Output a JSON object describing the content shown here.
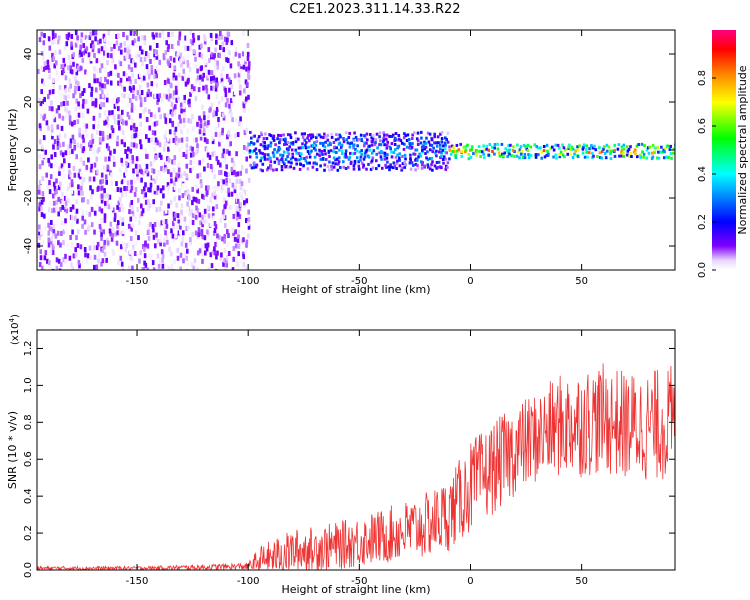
{
  "figure_title": "C2E1.2023.311.14.33.R22",
  "chart_data": [
    {
      "type": "heatmap",
      "title": "",
      "xlabel": "Height of straight line (km)",
      "ylabel": "Frequency (Hz)",
      "xlim": [
        -195,
        92
      ],
      "ylim": [
        -50,
        50
      ],
      "x_ticks": [
        -150,
        -100,
        -50,
        0,
        50
      ],
      "y_ticks": [
        -40,
        -20,
        0,
        20,
        40
      ],
      "colorbar": {
        "label": "Normalized spectral amplitude",
        "range": [
          0,
          1
        ],
        "ticks": [
          "0.0",
          "0.2",
          "0.4",
          "0.6",
          "0.8"
        ],
        "colors": [
          "#ffffff",
          "#7a00ff",
          "#0000ff",
          "#00ffff",
          "#00ff00",
          "#ffff00",
          "#ff8000",
          "#ff0000",
          "#ff0080"
        ]
      },
      "regions": [
        {
          "x_range": [
            -195,
            -100
          ],
          "freq_range": [
            -50,
            50
          ],
          "amplitude": [
            0.0,
            0.15
          ]
        },
        {
          "x_range": [
            -100,
            -10
          ],
          "freq_range": [
            -8,
            8
          ],
          "amplitude": [
            0.1,
            0.45
          ]
        },
        {
          "x_range": [
            -10,
            92
          ],
          "freq_range": [
            -3,
            3
          ],
          "amplitude": [
            0.2,
            0.95
          ]
        }
      ]
    },
    {
      "type": "line",
      "title": "",
      "xlabel": "Height of straight line (km)",
      "ylabel": "SNR (10 * v/v)",
      "y_scale_label": "(x10",
      "y_scale_exp": "4",
      "y_scale_close": ")",
      "xlim": [
        -195,
        92
      ],
      "ylim": [
        0,
        1.3
      ],
      "x_ticks": [
        -150,
        -100,
        -50,
        0,
        50
      ],
      "y_ticks": [
        "0.0",
        "0.2",
        "0.4",
        "0.6",
        "0.8",
        "1.0",
        "1.2"
      ],
      "color": "#ee3333",
      "series": [
        {
          "x": [
            -195,
            -150,
            -120,
            -100,
            -95,
            -80,
            -60,
            -40,
            -20,
            -10,
            0,
            10,
            20,
            30,
            40,
            50,
            60,
            70,
            80,
            92
          ],
          "y_mean": [
            0.01,
            0.01,
            0.015,
            0.02,
            0.05,
            0.1,
            0.13,
            0.18,
            0.24,
            0.3,
            0.45,
            0.55,
            0.65,
            0.72,
            0.78,
            0.8,
            0.82,
            0.78,
            0.78,
            0.8
          ],
          "y_spread": [
            0.01,
            0.01,
            0.015,
            0.02,
            0.08,
            0.12,
            0.13,
            0.15,
            0.18,
            0.2,
            0.25,
            0.25,
            0.25,
            0.25,
            0.28,
            0.3,
            0.3,
            0.3,
            0.3,
            0.32
          ]
        }
      ]
    }
  ]
}
